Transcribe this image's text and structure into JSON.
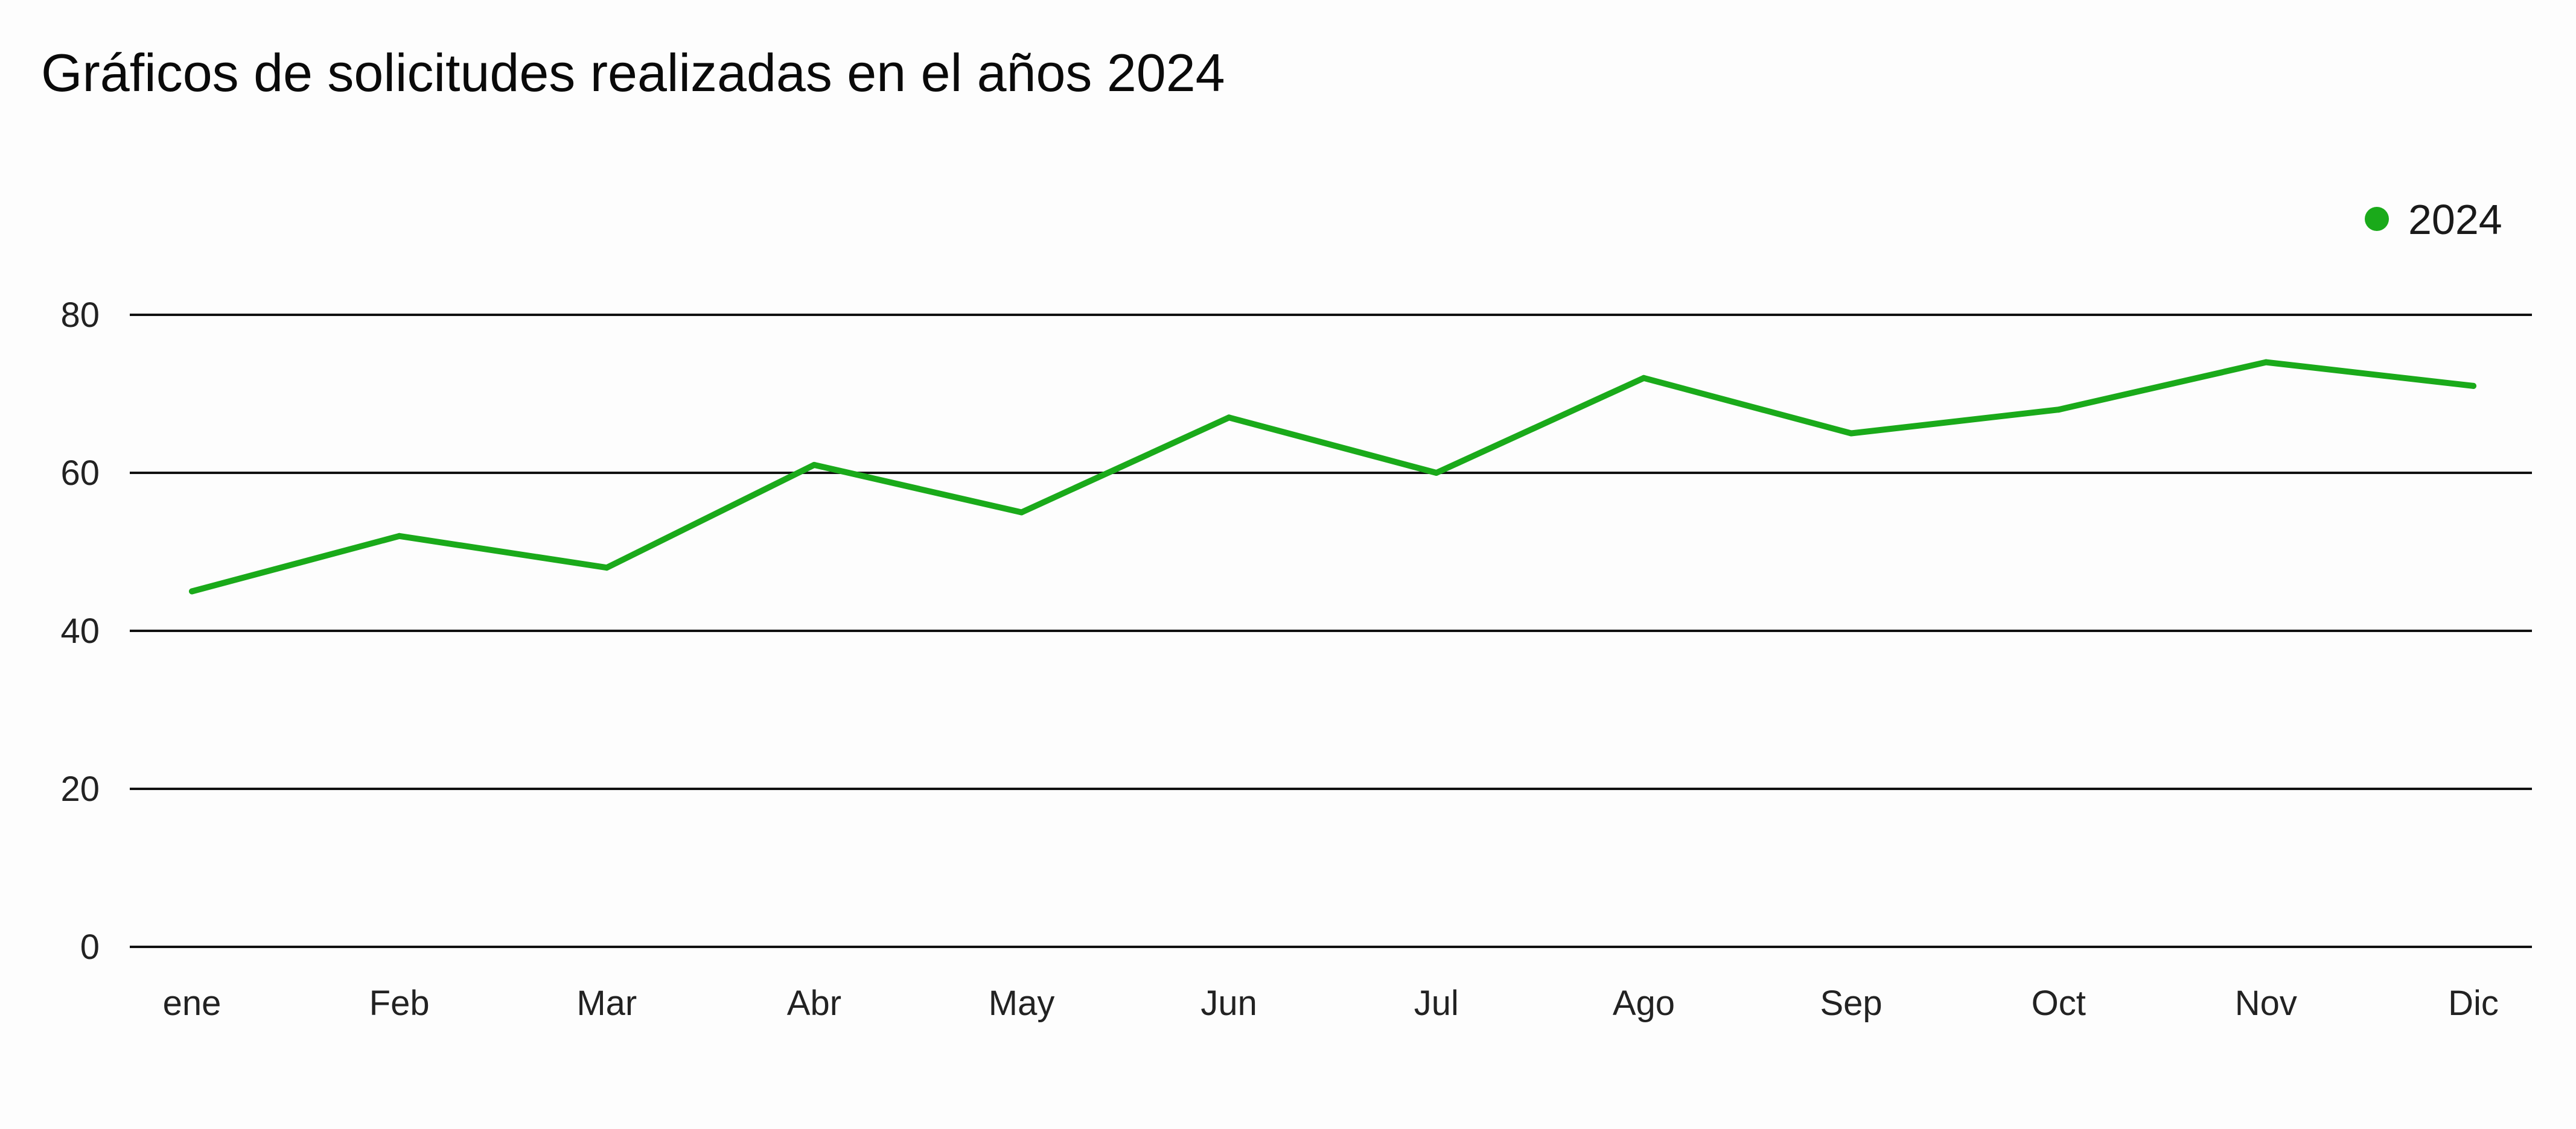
{
  "chart_data": {
    "type": "line",
    "title": "Gráficos de solicitudes realizadas en el años 2024",
    "xlabel": "",
    "ylabel": "",
    "categories": [
      "ene",
      "Feb",
      "Mar",
      "Abr",
      "May",
      "Jun",
      "Jul",
      "Ago",
      "Sep",
      "Oct",
      "Nov",
      "Dic"
    ],
    "series": [
      {
        "name": "2024",
        "color": "#1aaa1a",
        "values": [
          45,
          52,
          48,
          61,
          55,
          67,
          60,
          72,
          65,
          68,
          74,
          71
        ]
      }
    ],
    "ylim": [
      0,
      80
    ],
    "yticks": [
      0,
      20,
      40,
      60,
      80
    ],
    "grid": true,
    "legend": "top-right"
  }
}
